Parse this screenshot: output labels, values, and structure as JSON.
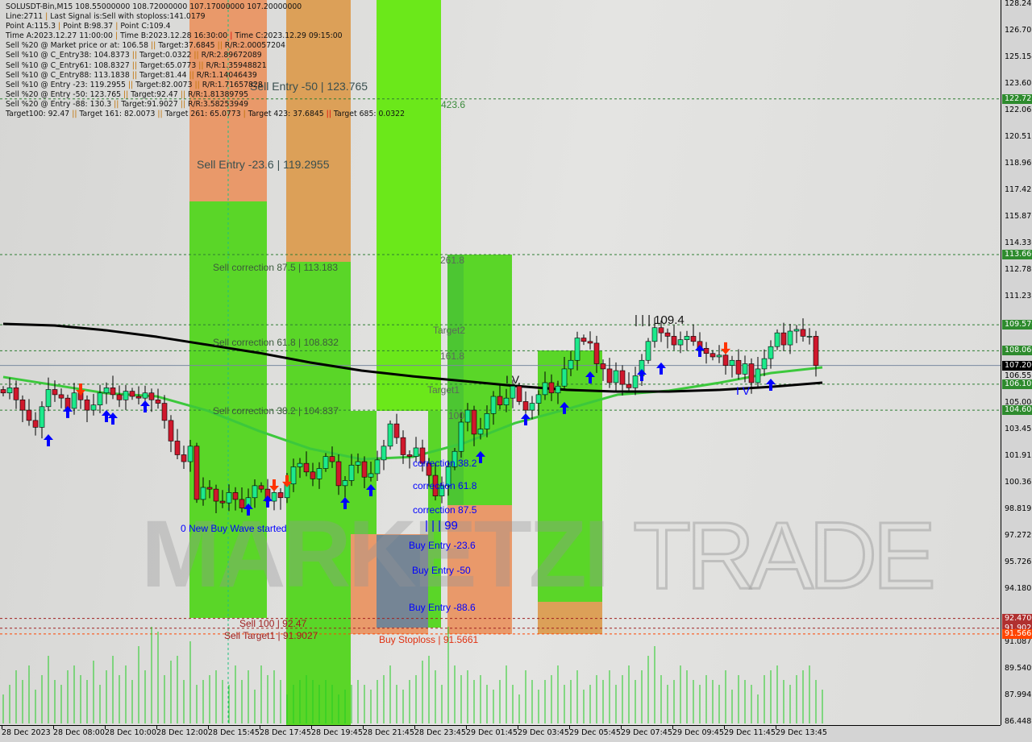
{
  "info": {
    "symbol_line": "SOLUSDT-Bin,M15  108.55000000 108.72000000 107.17000000 107.20000000",
    "line2": [
      "Line:2711",
      "Last Signal is:Sell with stoploss:141.0179"
    ],
    "line3": [
      "Point A:115.3",
      "Point B:98.37",
      "Point C:109.4"
    ],
    "line4": [
      "Time A:2023.12.27 11:00:00",
      "Time B:2023.12.28 16:30:00",
      "Time C:2023.12.29 09:15:00"
    ],
    "entries": [
      [
        "Sell %20 @ Market price or at: 106.58",
        "Target:37.6845",
        "R/R:2.00057204"
      ],
      [
        "Sell %10 @ C_Entry38: 104.8373",
        "Target:0.0322",
        "R/R:2.89672089"
      ],
      [
        "Sell %10 @ C_Entry61: 108.8327",
        "Target:65.0773",
        "R/R:1.35948821"
      ],
      [
        "Sell %10 @ C_Entry88: 113.1838",
        "Target:81.44",
        "R/R:1.14046439"
      ],
      [
        "Sell %10 @ Entry -23: 119.2955",
        "Target:82.0073",
        "R/R:1.71657828"
      ],
      [
        "Sell %20 @ Entry -50: 123.765",
        "Target:92.47",
        "R/R:1.81389795"
      ],
      [
        "Sell %20 @ Entry -88: 130.3",
        "Target:91.9027",
        "R/R:3.58253949"
      ]
    ],
    "targets": [
      "Target100: 92.47",
      "Target 161: 82.0073",
      "Target 261: 65.0773",
      "Target 423: 37.6845",
      "Target 685: 0.0322"
    ]
  },
  "labels": {
    "sell_entry_50": "Sell Entry -50 | 123.765",
    "sell_entry_236": "Sell Entry -23.6 | 119.2955",
    "fib_4236": "423.6",
    "sell_corr_875": "Sell correction 87.5 | 113.183",
    "fib_2618": "261.8",
    "wave_c": "| | | 109.4",
    "target2": "Target2",
    "sell_corr_618": "Sell correction 61.8 | 108.832",
    "fib_1618": "161.8",
    "wave_iv_a": "I V",
    "target1": "Target1",
    "sell_corr_382": "Sell correction 38.2 | 104.837",
    "fib_100": "100",
    "wave_iv_b": "I V",
    "corr_382": "correction 38.2",
    "corr_618": "correction 61.8",
    "corr_875": "correction 87.5",
    "wave_b": "| | | 99",
    "new_buy_wave": "0 New Buy Wave started",
    "buy_entry_236": "Buy Entry -23.6",
    "buy_entry_50": "Buy Entry -50",
    "buy_entry_886": "Buy Entry -88.6",
    "sell_100": "Sell 100 | 92.47",
    "sell_target1": "Sell Target1 | 91.9027",
    "buy_stoploss": "Buy Stoploss | 91.5661"
  },
  "watermark": {
    "text1": "MARKETZI",
    "text2": "TRADE"
  },
  "price_axis": {
    "ticks": [
      "128.247",
      "126.701",
      "125.154",
      "123.608",
      "122.062",
      "120.515",
      "118.969",
      "117.422",
      "115.876",
      "114.330",
      "112.783",
      "111.237",
      "106.551",
      "105.004",
      "103.458",
      "101.912",
      "100.365",
      "98.8193",
      "97.2729",
      "95.7265",
      "94.1801",
      "91.0873",
      "89.5409",
      "87.9945",
      "86.4481"
    ],
    "badges": [
      {
        "label": "122.721",
        "color": "#2e8b2e"
      },
      {
        "label": "113.660",
        "color": "#2e8b2e"
      },
      {
        "label": "109.570",
        "color": "#2e8b2e"
      },
      {
        "label": "108.060",
        "color": "#2e8b2e"
      },
      {
        "label": "107.200",
        "color": "#000000"
      },
      {
        "label": "106.109",
        "color": "#2e8b2e"
      },
      {
        "label": "104.600",
        "color": "#2e8b2e"
      },
      {
        "label": "92.4700",
        "color": "#b03030"
      },
      {
        "label": "91.9027",
        "color": "#b03030"
      },
      {
        "label": "91.5661",
        "color": "#ff4500"
      }
    ]
  },
  "time_axis": [
    "28 Dec 2023",
    "28 Dec 08:00",
    "28 Dec 10:00",
    "28 Dec 12:00",
    "28 Dec 15:45",
    "28 Dec 17:45",
    "28 Dec 19:45",
    "28 Dec 21:45",
    "28 Dec 23:45",
    "29 Dec 01:45",
    "29 Dec 03:45",
    "29 Dec 05:45",
    "29 Dec 07:45",
    "29 Dec 09:45",
    "29 Dec 11:45",
    "29 Dec 13:45"
  ],
  "chart_data": {
    "type": "candlestick",
    "symbol": "SOLUSDT-Bin",
    "timeframe": "M15",
    "ylim": [
      86.4481,
      128.247
    ],
    "last_price": 107.2,
    "closes": [
      105.6,
      105.9,
      105.2,
      104.6,
      104.0,
      103.6,
      104.8,
      105.8,
      105.5,
      105.3,
      104.7,
      105.6,
      105.2,
      104.6,
      104.9,
      105.6,
      105.9,
      105.5,
      105.2,
      105.7,
      105.4,
      105.3,
      105.6,
      105.2,
      105.0,
      104.0,
      102.8,
      102.0,
      101.6,
      102.5,
      99.4,
      100.1,
      100.0,
      99.3,
      99.2,
      99.8,
      99.4,
      98.9,
      99.5,
      100.2,
      100.0,
      99.3,
      99.8,
      99.5,
      100.3,
      101.3,
      101.5,
      101.0,
      100.6,
      101.2,
      101.9,
      101.6,
      100.2,
      100.5,
      101.4,
      101.6,
      100.7,
      100.9,
      101.7,
      102.5,
      103.8,
      103.0,
      102.0,
      101.9,
      102.4,
      101.5,
      100.8,
      99.6,
      100.2,
      101.3,
      102.2,
      103.9,
      104.6,
      103.2,
      103.5,
      104.4,
      105.4,
      104.9,
      105.3,
      106.0,
      105.1,
      104.6,
      105.0,
      105.5,
      106.2,
      105.6,
      106.0,
      107.0,
      107.5,
      108.8,
      108.6,
      108.5,
      107.3,
      107.0,
      106.2,
      106.9,
      106.1,
      105.9,
      106.6,
      107.5,
      108.6,
      109.4,
      109.1,
      108.9,
      108.4,
      108.7,
      108.9,
      108.6,
      108.2,
      107.9,
      107.7,
      107.8,
      107.2,
      107.5,
      106.7,
      107.3,
      106.2,
      107.0,
      107.6,
      108.3,
      109.1,
      108.4,
      109.2,
      109.3,
      108.9,
      108.9,
      107.2
    ],
    "ma_slow": [
      109.62,
      109.53,
      109.25,
      108.87,
      108.4,
      107.93,
      107.37,
      106.9,
      106.57,
      106.29,
      106.01,
      105.78,
      105.68,
      105.68,
      105.78,
      105.96,
      106.2
    ],
    "ma_fast": [
      106.53,
      106.06,
      105.59,
      105.4,
      104.56,
      103.38,
      102.35,
      101.74,
      101.88,
      102.68,
      103.85,
      104.65,
      105.5,
      105.73,
      106.2,
      106.76,
      107.09
    ],
    "levels": [
      {
        "price": 122.721,
        "color": "#2e7d32",
        "style": "dashed"
      },
      {
        "price": 113.66,
        "color": "#2e7d32",
        "style": "dashed"
      },
      {
        "price": 109.57,
        "color": "#2e7d32",
        "style": "dashed"
      },
      {
        "price": 108.06,
        "color": "#2e7d32",
        "style": "dashed"
      },
      {
        "price": 107.2,
        "color": "#7a8aa0",
        "style": "solid"
      },
      {
        "price": 106.109,
        "color": "#2e7d32",
        "style": "dashed"
      },
      {
        "price": 104.6,
        "color": "#2e7d32",
        "style": "dashed"
      },
      {
        "price": 92.47,
        "color": "#a02020",
        "style": "dashed"
      },
      {
        "price": 91.9027,
        "color": "#a02020",
        "style": "dashed"
      },
      {
        "price": 91.5661,
        "color": "#ff4500",
        "style": "dashed"
      }
    ],
    "buy_signals": [
      [
        7,
        102.82
      ],
      [
        10,
        104.47
      ],
      [
        16,
        104.23
      ],
      [
        17,
        104.09
      ],
      [
        22,
        104.79
      ],
      [
        38,
        98.79
      ],
      [
        41,
        99.26
      ],
      [
        53,
        99.16
      ],
      [
        57,
        99.91
      ],
      [
        74,
        101.84
      ],
      [
        81,
        104.04
      ],
      [
        87,
        104.7
      ],
      [
        91,
        106.48
      ],
      [
        99,
        106.62
      ],
      [
        102,
        107.0
      ],
      [
        108,
        108.03
      ],
      [
        119,
        106.06
      ]
    ],
    "sell_signals": [
      [
        12,
        105.82
      ],
      [
        42,
        100.24
      ],
      [
        44,
        100.48
      ],
      [
        112,
        108.22
      ]
    ],
    "volumes": [
      30,
      40,
      55,
      45,
      60,
      35,
      50,
      70,
      45,
      40,
      55,
      60,
      50,
      45,
      65,
      40,
      55,
      70,
      50,
      60,
      45,
      80,
      55,
      100,
      95,
      50,
      65,
      70,
      45,
      85,
      40,
      45,
      50,
      55,
      45,
      40,
      60,
      45,
      55,
      35,
      60,
      50,
      55,
      45,
      30,
      40,
      45,
      50,
      45,
      40,
      45,
      40,
      30,
      35,
      40,
      45,
      40,
      35,
      45,
      50,
      60,
      40,
      35,
      45,
      50,
      65,
      70,
      55,
      40,
      100,
      60,
      50,
      55,
      45,
      50,
      40,
      35,
      45,
      60,
      40,
      30,
      55,
      45,
      35,
      45,
      50,
      60,
      40,
      45,
      55,
      35,
      40,
      50,
      45,
      55,
      40,
      50,
      60,
      45,
      55,
      70,
      80,
      50,
      40,
      45,
      60,
      55,
      45,
      40,
      50,
      45,
      40,
      55,
      35,
      50,
      45,
      40,
      30,
      50,
      55,
      60,
      45,
      40,
      50,
      55,
      60,
      45,
      35
    ],
    "colors": {
      "bull": "#1de98b",
      "bear": "#d0182c",
      "ma_slow": "#000000",
      "ma_fast": "#3cc83c",
      "volume": "#22cc22",
      "buy_arrow": "#0000ff",
      "sell_arrow": "#ff3300"
    }
  }
}
